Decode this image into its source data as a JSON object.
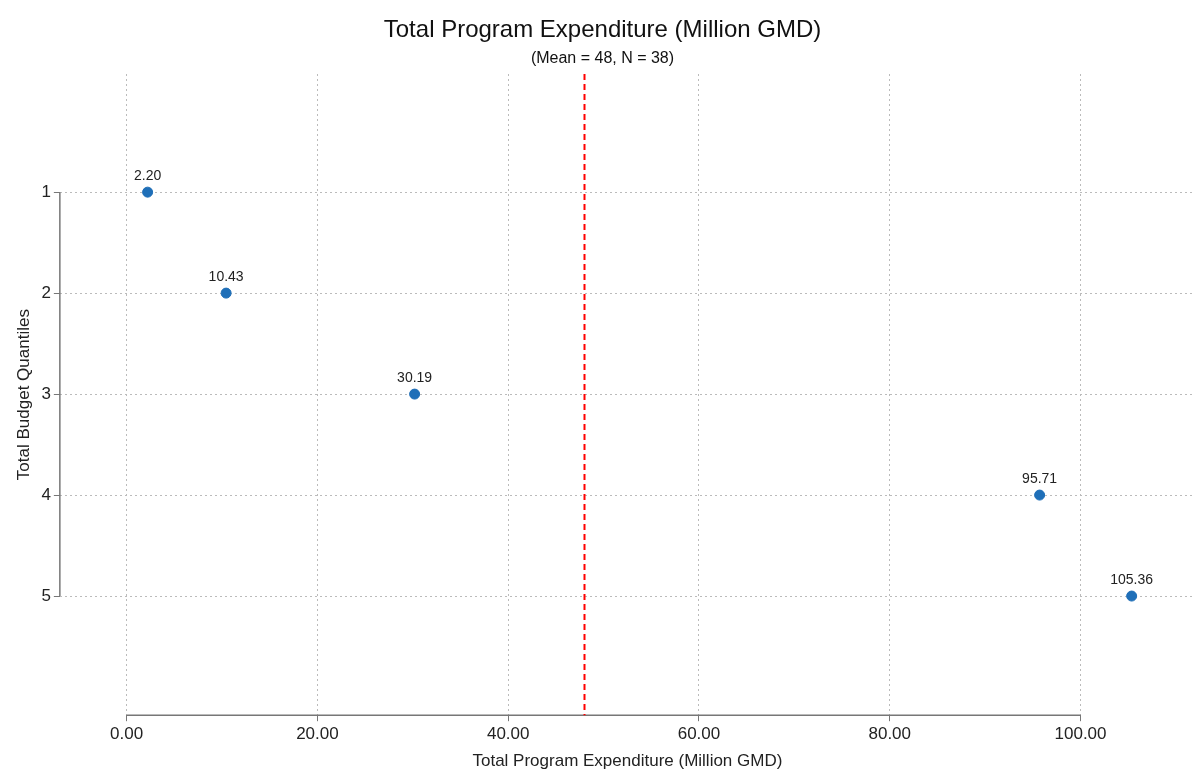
{
  "chart_data": {
    "type": "scatter",
    "orientation": "horizontal",
    "title": "Total Program Expenditure (Million GMD)",
    "subtitle": "(Mean = 48, N = 38)",
    "xlabel": "Total Program Expenditure (Million GMD)",
    "ylabel": "Total Budget Quantiles",
    "categories": [
      "1",
      "2",
      "3",
      "4",
      "5"
    ],
    "values": [
      2.2,
      10.43,
      30.19,
      95.71,
      105.36
    ],
    "value_labels": [
      "2.20",
      "10.43",
      "30.19",
      "95.71",
      "105.36"
    ],
    "color": "#1f6fb8",
    "xlim": [
      -7,
      112
    ],
    "xticks": [
      {
        "value": 0,
        "label": "0.00"
      },
      {
        "value": 20,
        "label": "20.00"
      },
      {
        "value": 40,
        "label": "40.00"
      },
      {
        "value": 60,
        "label": "60.00"
      },
      {
        "value": 80,
        "label": "80.00"
      },
      {
        "value": 100,
        "label": "100.00"
      }
    ],
    "ref_lines": [
      {
        "axis": "x",
        "value": 48,
        "color": "#ff0000",
        "line_style": "dashed"
      }
    ],
    "grid": true,
    "marker": "circle"
  }
}
